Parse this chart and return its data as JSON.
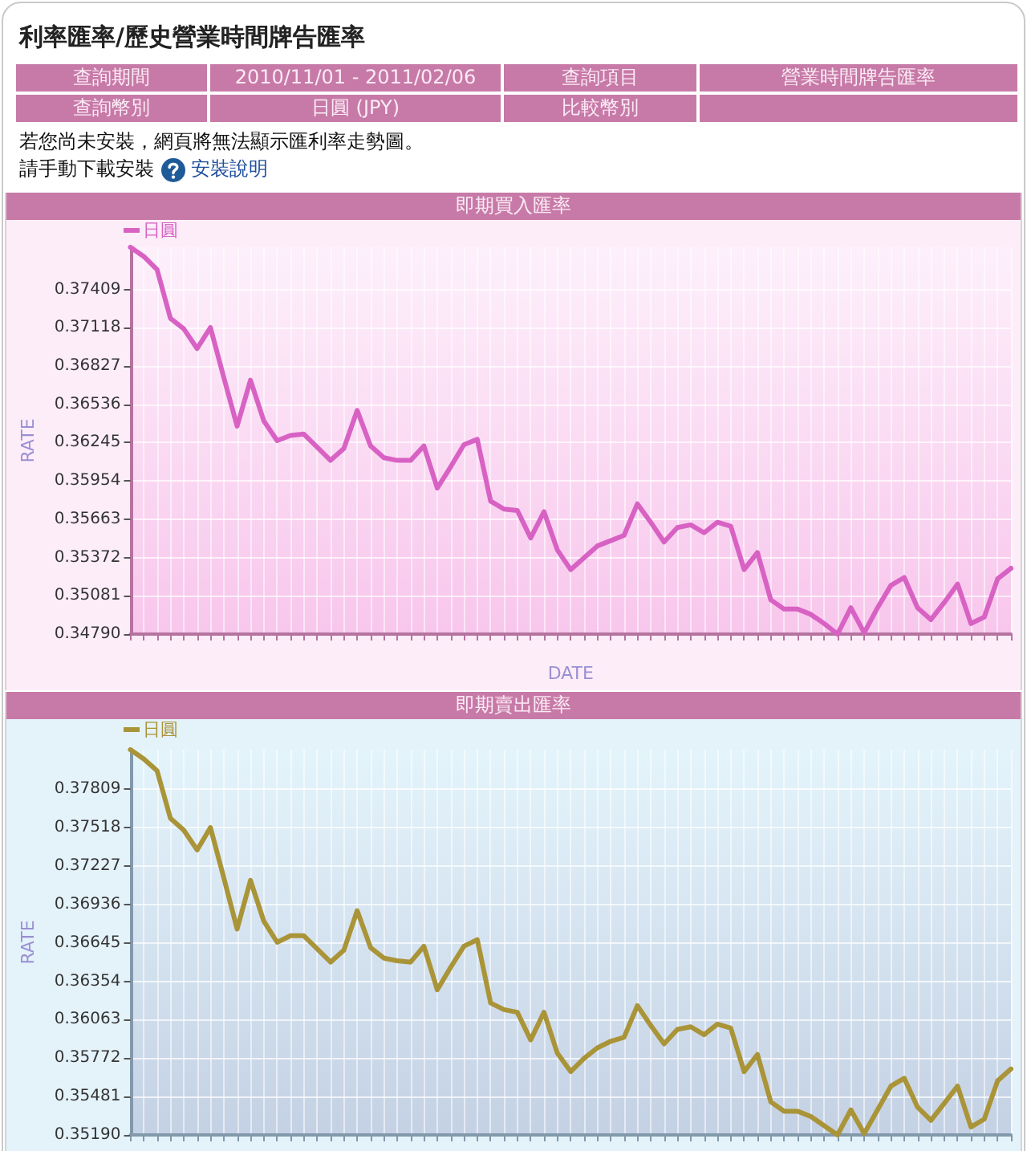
{
  "chart_data": [
    {
      "type": "other",
      "title": "利率匯率/歷史營業時間牌告匯率",
      "annotations": [
        "查詢期間",
        "2010/11/01 - 2011/02/06",
        "查詢項目",
        "營業時間牌告匯率",
        "查詢幣別",
        "日圓 (JPY)",
        "比較幣別",
        "若您尚未安裝，網頁將無法顯示匯利率走勢圖。",
        "請手動下載安裝",
        "安裝說明"
      ]
    },
    {
      "type": "line",
      "title": "即期買入匯率",
      "xlabel": "DATE",
      "ylabel": "RATE",
      "categories": [
        null,
        null,
        null,
        null,
        null,
        null,
        null,
        null,
        null,
        null,
        null,
        null,
        null,
        null,
        null,
        null,
        null,
        null,
        null,
        null,
        null,
        null,
        null,
        null,
        null,
        null,
        null,
        null,
        null,
        null,
        null,
        null,
        null,
        null,
        null,
        null,
        null,
        null,
        null,
        null,
        null,
        null,
        null,
        null,
        null,
        null,
        null,
        null,
        null,
        null,
        null,
        null,
        null,
        null,
        null,
        null,
        null,
        null,
        null,
        null,
        null,
        null,
        null,
        null,
        null,
        null,
        null
      ],
      "series": [
        {
          "name": "日圓",
          "color": "#d862c3",
          "values": [
            0.3773,
            0.3766,
            0.3756,
            0.3719,
            0.3711,
            0.3696,
            0.3712,
            0.3674,
            0.3637,
            0.3672,
            0.3641,
            0.3626,
            0.363,
            0.3631,
            0.3621,
            0.3611,
            0.362,
            0.3649,
            0.3622,
            0.3613,
            0.3611,
            0.3611,
            0.3622,
            0.359,
            0.3606,
            0.3623,
            0.3627,
            0.358,
            0.3574,
            0.3573,
            0.3552,
            0.3572,
            0.3543,
            0.3528,
            0.3537,
            0.3546,
            0.355,
            0.3554,
            0.3578,
            0.3564,
            0.3549,
            0.356,
            0.3562,
            0.3556,
            0.3564,
            0.3561,
            0.3528,
            0.3541,
            0.3505,
            0.3498,
            0.3498,
            0.3494,
            0.3487,
            0.3479,
            0.3499,
            0.348,
            0.3499,
            0.3516,
            0.3522,
            0.3499,
            0.349,
            0.3503,
            0.3517,
            0.3487,
            0.3492,
            0.3521,
            0.3529
          ]
        }
      ],
      "ylim": [
        0.3479,
        0.3773
      ],
      "yticks": [
        {
          "value": 0.3479,
          "label": "0.34790"
        },
        0.35081,
        0.35372,
        0.35663,
        0.35954,
        0.36245,
        0.36536,
        0.36827,
        0.37118,
        0.37409
      ],
      "grid": true,
      "legend": "top left",
      "tick_labels": "y"
    },
    {
      "type": "line",
      "title": "即期賣出匯率",
      "ylabel": "RATE",
      "categories": [
        null,
        null,
        null,
        null,
        null,
        null,
        null,
        null,
        null,
        null,
        null,
        null,
        null,
        null,
        null,
        null,
        null,
        null,
        null,
        null,
        null,
        null,
        null,
        null,
        null,
        null,
        null,
        null,
        null,
        null,
        null,
        null,
        null,
        null,
        null,
        null,
        null,
        null,
        null,
        null,
        null,
        null,
        null,
        null,
        null,
        null,
        null,
        null,
        null,
        null,
        null,
        null,
        null,
        null,
        null,
        null,
        null,
        null,
        null,
        null,
        null,
        null,
        null,
        null,
        null,
        null,
        null
      ],
      "series": [
        {
          "name": "日圓",
          "color": "#aa9438",
          "values": [
            0.3811,
            0.3804,
            0.3795,
            0.3759,
            0.375,
            0.3735,
            0.3752,
            0.3714,
            0.3675,
            0.3712,
            0.3681,
            0.3665,
            0.367,
            0.367,
            0.366,
            0.365,
            0.3659,
            0.3689,
            0.3661,
            0.3653,
            0.3651,
            0.365,
            0.3662,
            0.3629,
            0.3646,
            0.3662,
            0.3667,
            0.3619,
            0.3614,
            0.3612,
            0.3591,
            0.3612,
            0.3581,
            0.3567,
            0.3577,
            0.3585,
            0.359,
            0.3593,
            0.3617,
            0.3602,
            0.3588,
            0.3599,
            0.3601,
            0.3595,
            0.3603,
            0.36,
            0.3567,
            0.358,
            0.3544,
            0.3537,
            0.3537,
            0.3533,
            0.3526,
            0.3519,
            0.3538,
            0.352,
            0.3538,
            0.3556,
            0.3562,
            0.354,
            0.353,
            0.3543,
            0.3556,
            0.3525,
            0.3531,
            0.356,
            0.3569
          ]
        }
      ],
      "ylim": [
        0.3519,
        0.3811
      ],
      "yticks": [
        {
          "value": 0.3519,
          "label": "0.35190"
        },
        0.35481,
        0.35772,
        0.36063,
        0.36354,
        0.36645,
        0.36936,
        0.37227,
        0.37518,
        0.37809
      ],
      "grid": true,
      "legend": "top left",
      "tick_labels": "y"
    }
  ]
}
